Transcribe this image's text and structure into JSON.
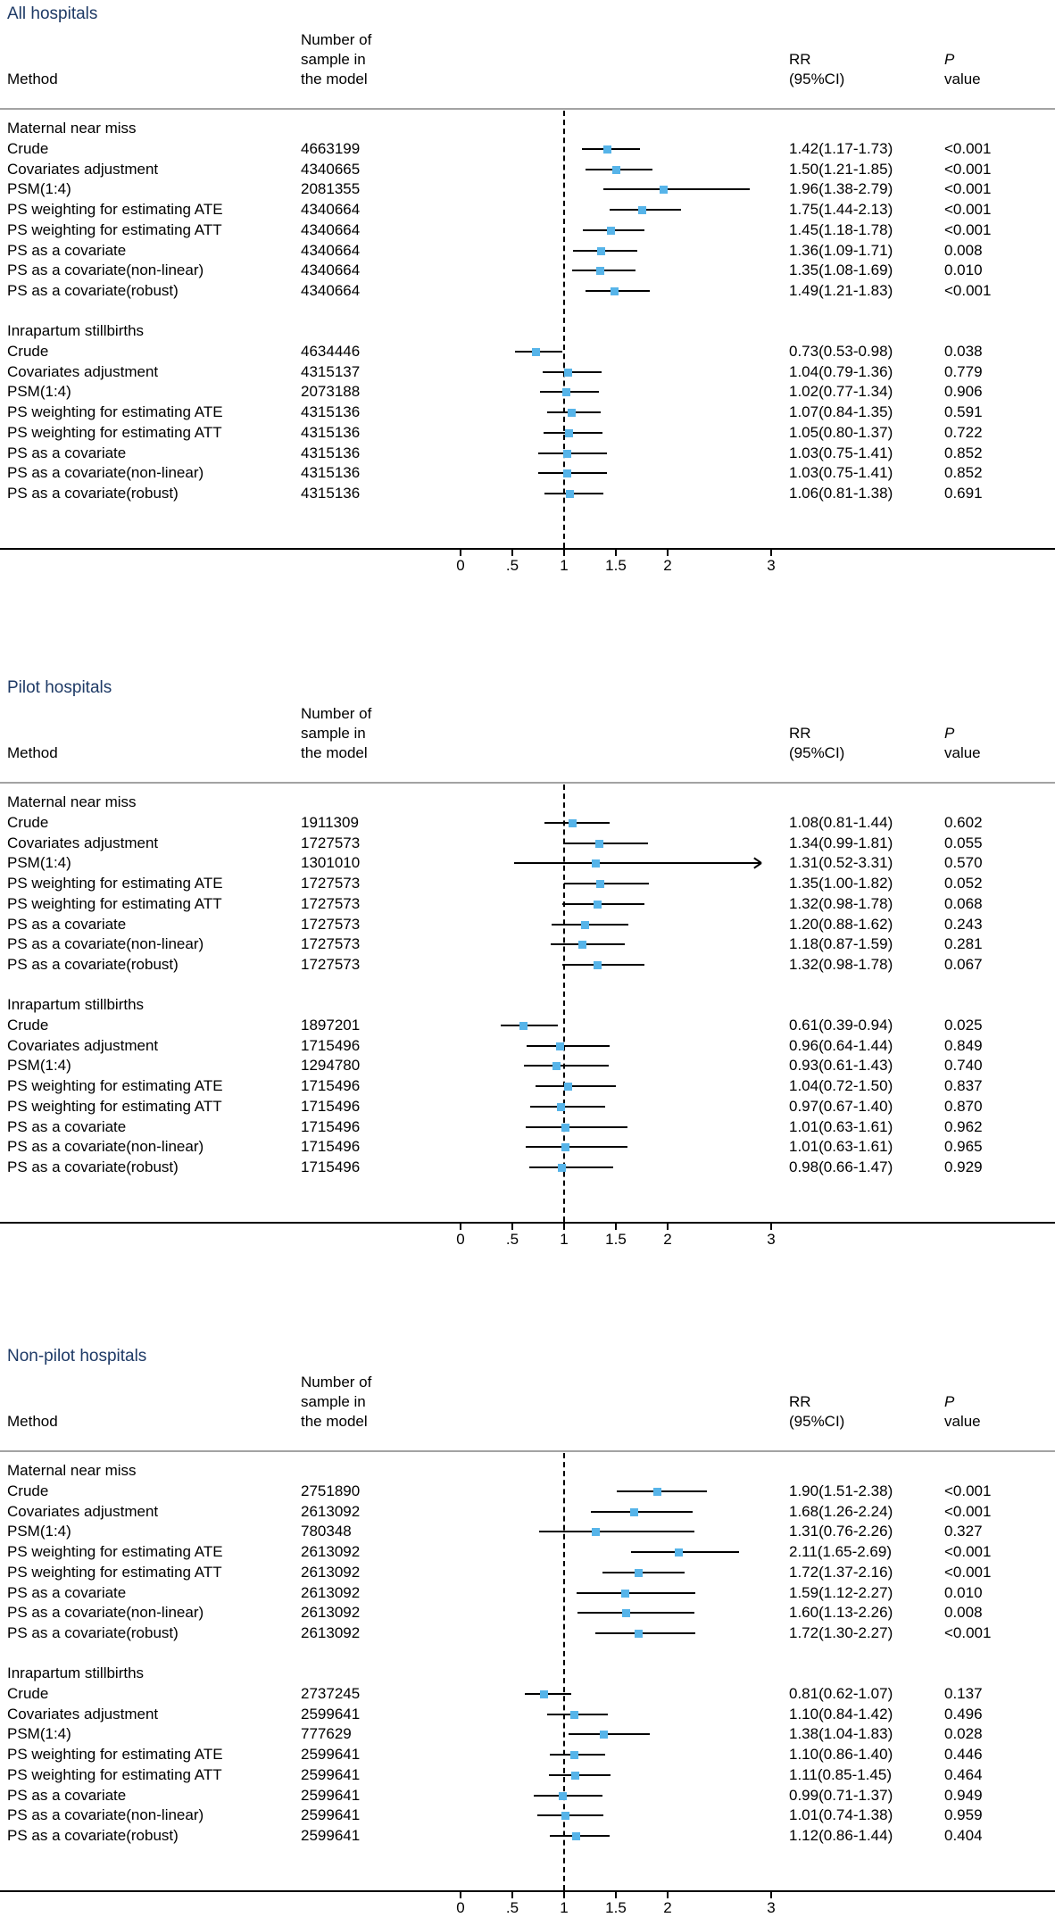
{
  "figure": {
    "columns": {
      "method": "Method",
      "n": [
        "Number of",
        "sample in",
        "the model"
      ],
      "rr": [
        "RR",
        "(95%CI)"
      ],
      "p": [
        "P",
        "value"
      ]
    }
  },
  "chart_data": {
    "type": "forest",
    "x_axis": {
      "ticks": [
        "0",
        ".5",
        "1",
        "1.5",
        "2",
        "3"
      ],
      "values": [
        0,
        0.5,
        1,
        1.5,
        2,
        3
      ],
      "ref_line": 1,
      "range": [
        0,
        3.5
      ]
    },
    "marker_color": "#56b4e9",
    "title_color": "#1e3a66",
    "panels": [
      {
        "title": "All hospitals",
        "groups": [
          {
            "label": "Maternal near miss",
            "rows": [
              {
                "method": "Crude",
                "n": "4663199",
                "rr": 1.42,
                "lo": 1.17,
                "hi": 1.73,
                "rr_text": "1.42(1.17-1.73)",
                "p": "<0.001"
              },
              {
                "method": "Covariates adjustment",
                "n": "4340665",
                "rr": 1.5,
                "lo": 1.21,
                "hi": 1.85,
                "rr_text": "1.50(1.21-1.85)",
                "p": "<0.001"
              },
              {
                "method": "PSM(1:4)",
                "n": "2081355",
                "rr": 1.96,
                "lo": 1.38,
                "hi": 2.79,
                "rr_text": "1.96(1.38-2.79)",
                "p": "<0.001"
              },
              {
                "method": "PS weighting for estimating ATE",
                "n": "4340664",
                "rr": 1.75,
                "lo": 1.44,
                "hi": 2.13,
                "rr_text": "1.75(1.44-2.13)",
                "p": "<0.001"
              },
              {
                "method": "PS weighting for estimating ATT",
                "n": "4340664",
                "rr": 1.45,
                "lo": 1.18,
                "hi": 1.78,
                "rr_text": "1.45(1.18-1.78)",
                "p": "<0.001"
              },
              {
                "method": "PS as a covariate",
                "n": "4340664",
                "rr": 1.36,
                "lo": 1.09,
                "hi": 1.71,
                "rr_text": "1.36(1.09-1.71)",
                "p": "0.008"
              },
              {
                "method": "PS as a covariate(non-linear)",
                "n": "4340664",
                "rr": 1.35,
                "lo": 1.08,
                "hi": 1.69,
                "rr_text": "1.35(1.08-1.69)",
                "p": "0.010"
              },
              {
                "method": "PS as a covariate(robust)",
                "n": "4340664",
                "rr": 1.49,
                "lo": 1.21,
                "hi": 1.83,
                "rr_text": "1.49(1.21-1.83)",
                "p": "<0.001"
              }
            ]
          },
          {
            "label": "Inrapartum stillbirths",
            "rows": [
              {
                "method": "Crude",
                "n": "4634446",
                "rr": 0.73,
                "lo": 0.53,
                "hi": 0.98,
                "rr_text": "0.73(0.53-0.98)",
                "p": "0.038"
              },
              {
                "method": "Covariates adjustment",
                "n": "4315137",
                "rr": 1.04,
                "lo": 0.79,
                "hi": 1.36,
                "rr_text": "1.04(0.79-1.36)",
                "p": "0.779"
              },
              {
                "method": "PSM(1:4)",
                "n": "2073188",
                "rr": 1.02,
                "lo": 0.77,
                "hi": 1.34,
                "rr_text": "1.02(0.77-1.34)",
                "p": "0.906"
              },
              {
                "method": "PS weighting for estimating ATE",
                "n": "4315136",
                "rr": 1.07,
                "lo": 0.84,
                "hi": 1.35,
                "rr_text": "1.07(0.84-1.35)",
                "p": "0.591"
              },
              {
                "method": "PS weighting for estimating ATT",
                "n": "4315136",
                "rr": 1.05,
                "lo": 0.8,
                "hi": 1.37,
                "rr_text": "1.05(0.80-1.37)",
                "p": "0.722"
              },
              {
                "method": "PS as a covariate",
                "n": "4315136",
                "rr": 1.03,
                "lo": 0.75,
                "hi": 1.41,
                "rr_text": "1.03(0.75-1.41)",
                "p": "0.852"
              },
              {
                "method": "PS as a covariate(non-linear)",
                "n": "4315136",
                "rr": 1.03,
                "lo": 0.75,
                "hi": 1.41,
                "rr_text": "1.03(0.75-1.41)",
                "p": "0.852"
              },
              {
                "method": "PS as a covariate(robust)",
                "n": "4315136",
                "rr": 1.06,
                "lo": 0.81,
                "hi": 1.38,
                "rr_text": "1.06(0.81-1.38)",
                "p": "0.691"
              }
            ]
          }
        ]
      },
      {
        "title": "Pilot hospitals",
        "groups": [
          {
            "label": "Maternal near miss",
            "rows": [
              {
                "method": "Crude",
                "n": "1911309",
                "rr": 1.08,
                "lo": 0.81,
                "hi": 1.44,
                "rr_text": "1.08(0.81-1.44)",
                "p": "0.602"
              },
              {
                "method": "Covariates adjustment",
                "n": "1727573",
                "rr": 1.34,
                "lo": 0.99,
                "hi": 1.81,
                "rr_text": "1.34(0.99-1.81)",
                "p": "0.055"
              },
              {
                "method": "PSM(1:4)",
                "n": "1301010",
                "rr": 1.31,
                "lo": 0.52,
                "hi": 3.31,
                "rr_text": "1.31(0.52-3.31)",
                "p": "0.570",
                "arrow_right": true
              },
              {
                "method": "PS weighting for estimating ATE",
                "n": "1727573",
                "rr": 1.35,
                "lo": 1.0,
                "hi": 1.82,
                "rr_text": "1.35(1.00-1.82)",
                "p": "0.052"
              },
              {
                "method": "PS weighting for estimating ATT",
                "n": "1727573",
                "rr": 1.32,
                "lo": 0.98,
                "hi": 1.78,
                "rr_text": "1.32(0.98-1.78)",
                "p": "0.068"
              },
              {
                "method": "PS as a covariate",
                "n": "1727573",
                "rr": 1.2,
                "lo": 0.88,
                "hi": 1.62,
                "rr_text": "1.20(0.88-1.62)",
                "p": "0.243"
              },
              {
                "method": "PS as a covariate(non-linear)",
                "n": "1727573",
                "rr": 1.18,
                "lo": 0.87,
                "hi": 1.59,
                "rr_text": "1.18(0.87-1.59)",
                "p": "0.281"
              },
              {
                "method": "PS as a covariate(robust)",
                "n": "1727573",
                "rr": 1.32,
                "lo": 0.98,
                "hi": 1.78,
                "rr_text": "1.32(0.98-1.78)",
                "p": "0.067"
              }
            ]
          },
          {
            "label": "Inrapartum stillbirths",
            "rows": [
              {
                "method": "Crude",
                "n": "1897201",
                "rr": 0.61,
                "lo": 0.39,
                "hi": 0.94,
                "rr_text": "0.61(0.39-0.94)",
                "p": "0.025"
              },
              {
                "method": "Covariates adjustment",
                "n": "1715496",
                "rr": 0.96,
                "lo": 0.64,
                "hi": 1.44,
                "rr_text": "0.96(0.64-1.44)",
                "p": "0.849"
              },
              {
                "method": "PSM(1:4)",
                "n": "1294780",
                "rr": 0.93,
                "lo": 0.61,
                "hi": 1.43,
                "rr_text": "0.93(0.61-1.43)",
                "p": "0.740"
              },
              {
                "method": "PS weighting for estimating ATE",
                "n": "1715496",
                "rr": 1.04,
                "lo": 0.72,
                "hi": 1.5,
                "rr_text": "1.04(0.72-1.50)",
                "p": "0.837"
              },
              {
                "method": "PS weighting for estimating ATT",
                "n": "1715496",
                "rr": 0.97,
                "lo": 0.67,
                "hi": 1.4,
                "rr_text": "0.97(0.67-1.40)",
                "p": "0.870"
              },
              {
                "method": "PS as a covariate",
                "n": "1715496",
                "rr": 1.01,
                "lo": 0.63,
                "hi": 1.61,
                "rr_text": "1.01(0.63-1.61)",
                "p": "0.962"
              },
              {
                "method": "PS as a covariate(non-linear)",
                "n": "1715496",
                "rr": 1.01,
                "lo": 0.63,
                "hi": 1.61,
                "rr_text": "1.01(0.63-1.61)",
                "p": "0.965"
              },
              {
                "method": "PS as a covariate(robust)",
                "n": "1715496",
                "rr": 0.98,
                "lo": 0.66,
                "hi": 1.47,
                "rr_text": "0.98(0.66-1.47)",
                "p": "0.929"
              }
            ]
          }
        ]
      },
      {
        "title": "Non-pilot hospitals",
        "groups": [
          {
            "label": "Maternal near miss",
            "rows": [
              {
                "method": "Crude",
                "n": "2751890",
                "rr": 1.9,
                "lo": 1.51,
                "hi": 2.38,
                "rr_text": "1.90(1.51-2.38)",
                "p": "<0.001"
              },
              {
                "method": "Covariates adjustment",
                "n": "2613092",
                "rr": 1.68,
                "lo": 1.26,
                "hi": 2.24,
                "rr_text": "1.68(1.26-2.24)",
                "p": "<0.001"
              },
              {
                "method": "PSM(1:4)",
                "n": "780348",
                "rr": 1.31,
                "lo": 0.76,
                "hi": 2.26,
                "rr_text": "1.31(0.76-2.26)",
                "p": "0.327"
              },
              {
                "method": "PS weighting for estimating ATE",
                "n": "2613092",
                "rr": 2.11,
                "lo": 1.65,
                "hi": 2.69,
                "rr_text": "2.11(1.65-2.69)",
                "p": "<0.001"
              },
              {
                "method": "PS weighting for estimating ATT",
                "n": "2613092",
                "rr": 1.72,
                "lo": 1.37,
                "hi": 2.16,
                "rr_text": "1.72(1.37-2.16)",
                "p": "<0.001"
              },
              {
                "method": "PS as a covariate",
                "n": "2613092",
                "rr": 1.59,
                "lo": 1.12,
                "hi": 2.27,
                "rr_text": "1.59(1.12-2.27)",
                "p": "0.010"
              },
              {
                "method": "PS as a covariate(non-linear)",
                "n": "2613092",
                "rr": 1.6,
                "lo": 1.13,
                "hi": 2.26,
                "rr_text": "1.60(1.13-2.26)",
                "p": "0.008"
              },
              {
                "method": "PS as a covariate(robust)",
                "n": "2613092",
                "rr": 1.72,
                "lo": 1.3,
                "hi": 2.27,
                "rr_text": "1.72(1.30-2.27)",
                "p": "<0.001"
              }
            ]
          },
          {
            "label": "Inrapartum stillbirths",
            "rows": [
              {
                "method": "Crude",
                "n": "2737245",
                "rr": 0.81,
                "lo": 0.62,
                "hi": 1.07,
                "rr_text": "0.81(0.62-1.07)",
                "p": "0.137"
              },
              {
                "method": "Covariates adjustment",
                "n": "2599641",
                "rr": 1.1,
                "lo": 0.84,
                "hi": 1.42,
                "rr_text": "1.10(0.84-1.42)",
                "p": "0.496"
              },
              {
                "method": "PSM(1:4)",
                "n": "777629",
                "rr": 1.38,
                "lo": 1.04,
                "hi": 1.83,
                "rr_text": "1.38(1.04-1.83)",
                "p": "0.028"
              },
              {
                "method": "PS weighting for estimating ATE",
                "n": "2599641",
                "rr": 1.1,
                "lo": 0.86,
                "hi": 1.4,
                "rr_text": "1.10(0.86-1.40)",
                "p": "0.446"
              },
              {
                "method": "PS weighting for estimating ATT",
                "n": "2599641",
                "rr": 1.11,
                "lo": 0.85,
                "hi": 1.45,
                "rr_text": "1.11(0.85-1.45)",
                "p": "0.464"
              },
              {
                "method": "PS as a covariate",
                "n": "2599641",
                "rr": 0.99,
                "lo": 0.71,
                "hi": 1.37,
                "rr_text": "0.99(0.71-1.37)",
                "p": "0.949"
              },
              {
                "method": "PS as a covariate(non-linear)",
                "n": "2599641",
                "rr": 1.01,
                "lo": 0.74,
                "hi": 1.38,
                "rr_text": "1.01(0.74-1.38)",
                "p": "0.959"
              },
              {
                "method": "PS as a covariate(robust)",
                "n": "2599641",
                "rr": 1.12,
                "lo": 0.86,
                "hi": 1.44,
                "rr_text": "1.12(0.86-1.44)",
                "p": "0.404"
              }
            ]
          }
        ]
      }
    ]
  }
}
